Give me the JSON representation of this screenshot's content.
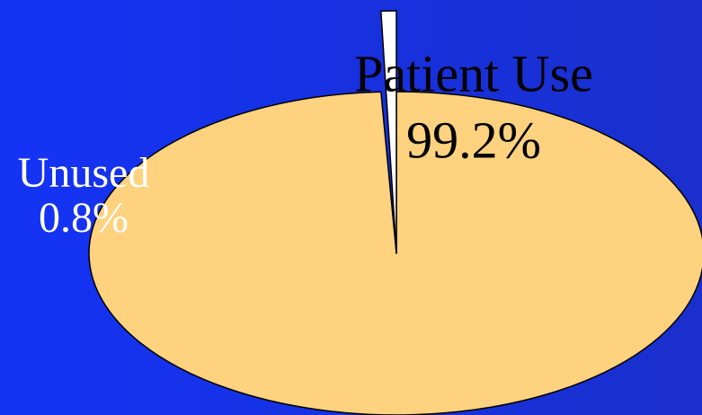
{
  "chart_data": {
    "type": "pie",
    "categories": [
      "Unused",
      "Patient Use"
    ],
    "values": [
      0.8,
      99.2
    ],
    "value_labels": [
      "0.8%",
      "99.2%"
    ],
    "colors": [
      "#ffffff",
      "#ffd27f"
    ]
  }
}
